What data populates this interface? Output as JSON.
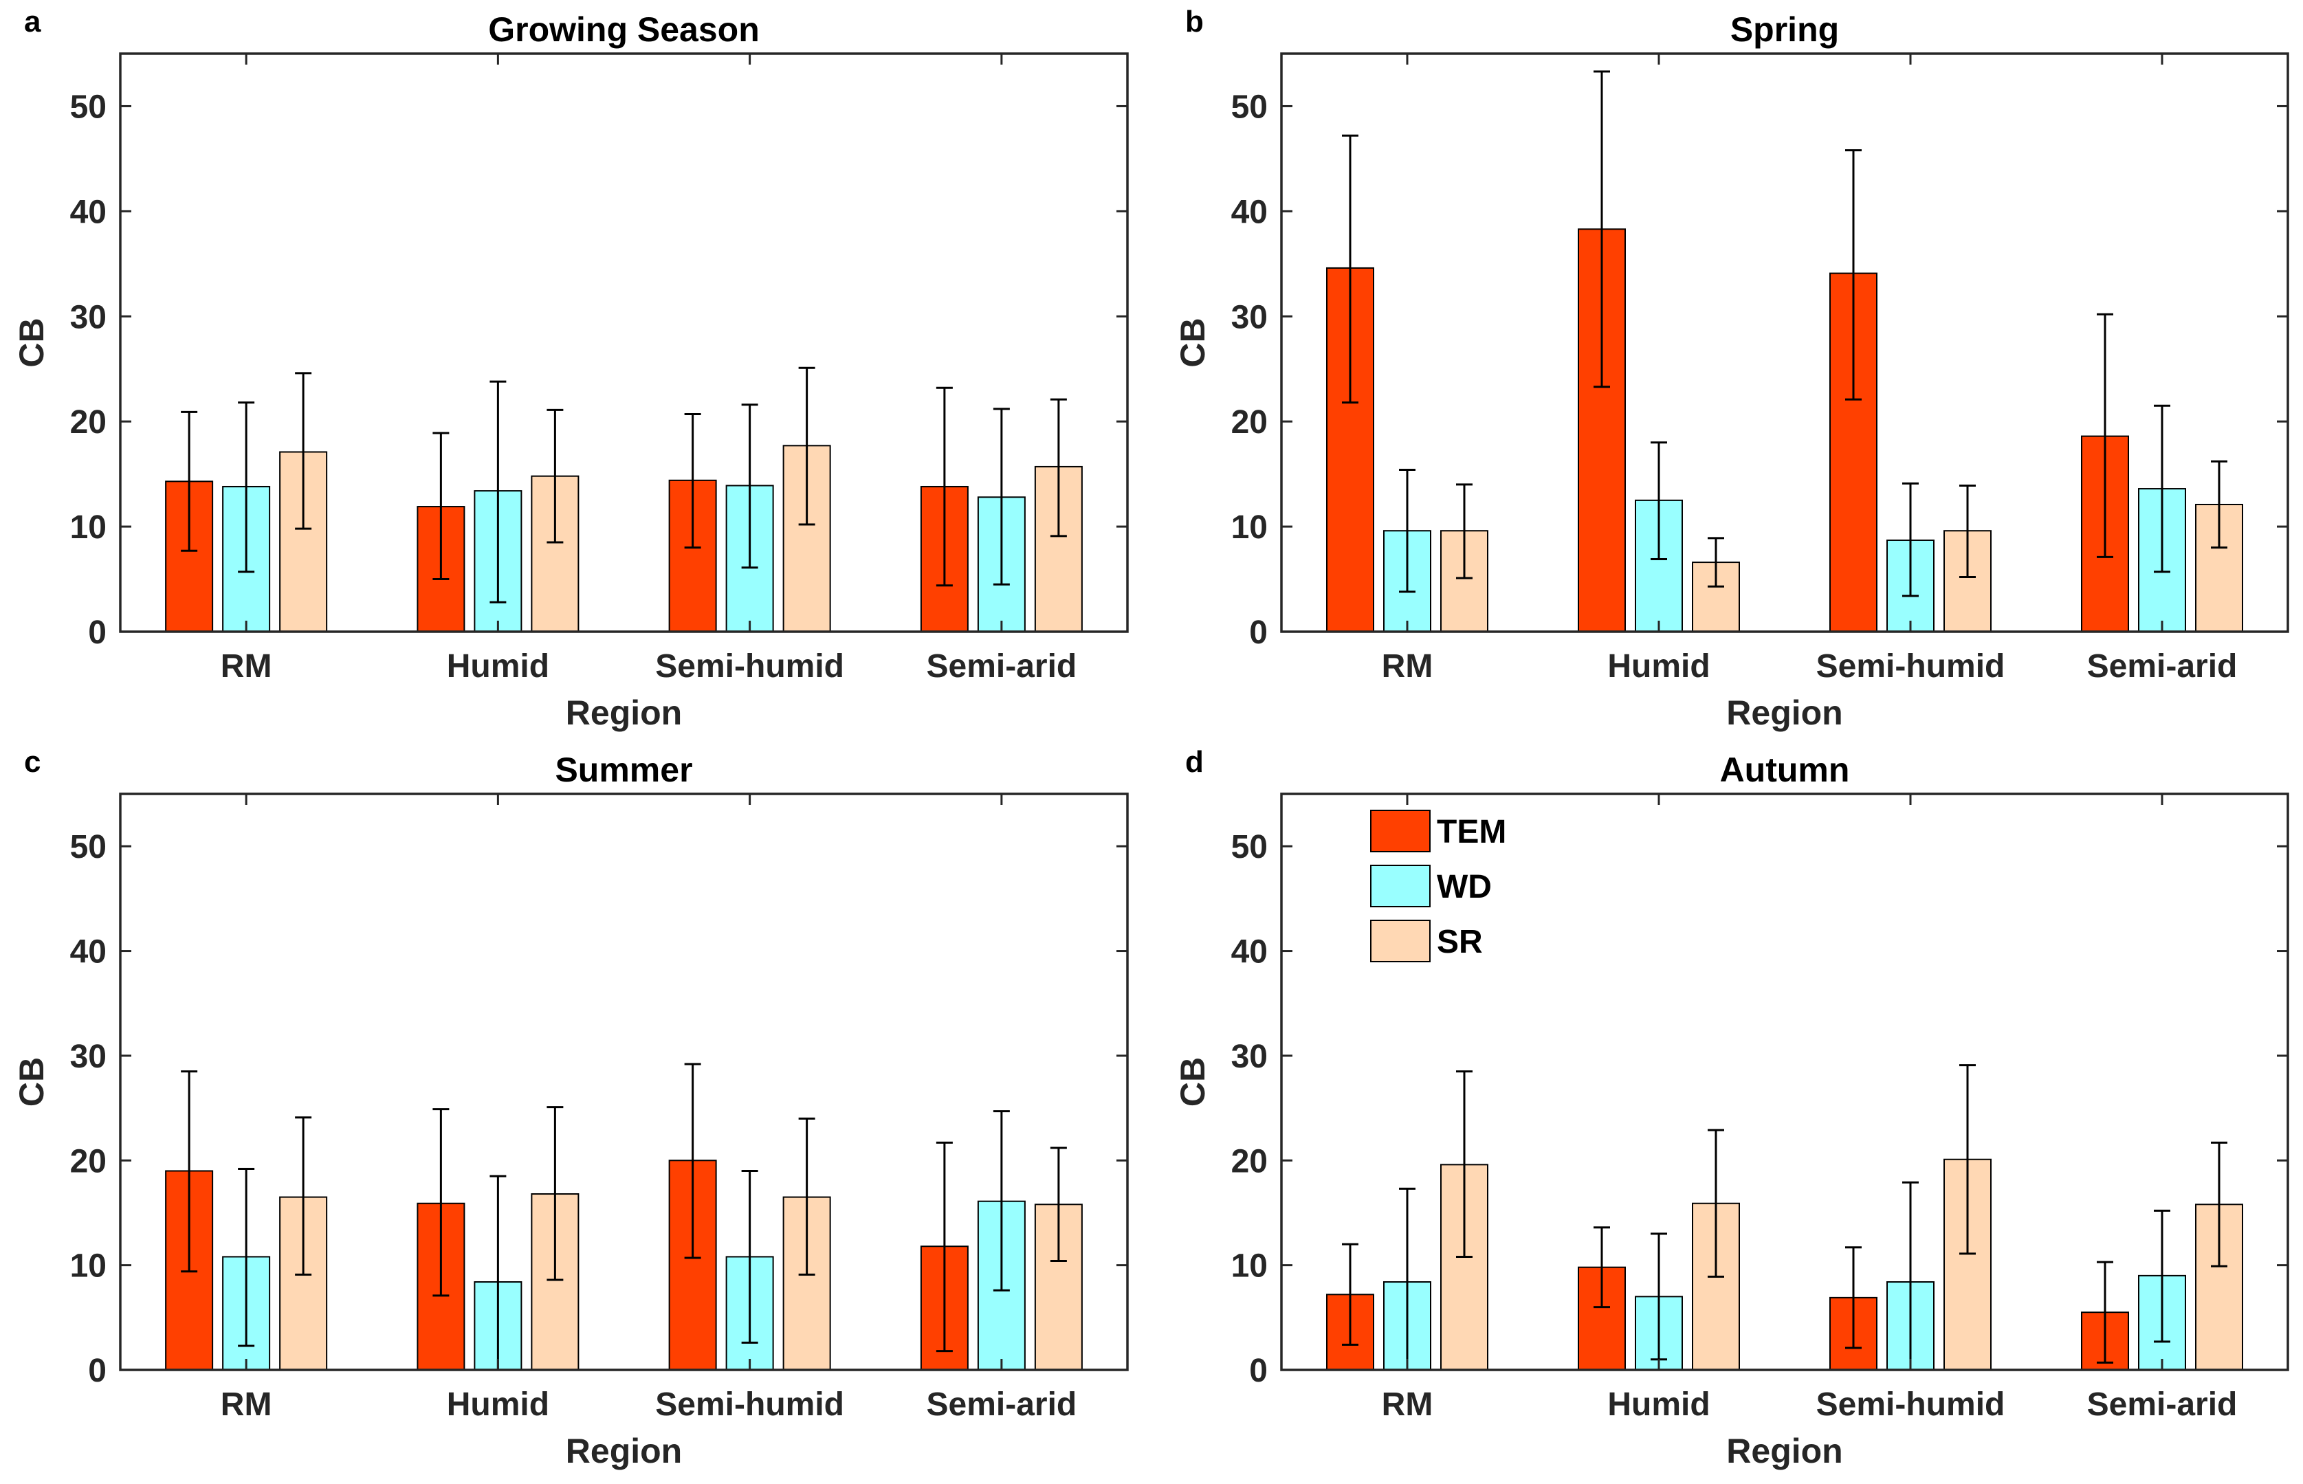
{
  "figure": {
    "series_order": [
      "TEM",
      "WD",
      "SR"
    ]
  },
  "legend": {
    "panel_index": 3,
    "items": [
      {
        "label": "TEM",
        "color": "#FF4000"
      },
      {
        "label": "WD",
        "color": "#99FFFF"
      },
      {
        "label": "SR",
        "color": "#FFD8B4"
      }
    ]
  },
  "chart_data": [
    {
      "type": "bar",
      "panel_letter": "a",
      "title": "Growing Season",
      "xlabel": "Region",
      "ylabel": "CB",
      "ylim": [
        0,
        55
      ],
      "yticks": [
        0,
        10,
        20,
        30,
        40,
        50
      ],
      "categories": [
        "RM",
        "Humid",
        "Semi-humid",
        "Semi-arid"
      ],
      "series": [
        {
          "name": "TEM",
          "color": "#FF4000",
          "values": [
            14.3,
            11.9,
            14.4,
            13.8
          ],
          "err_low": [
            7.7,
            5.0,
            8.0,
            4.4
          ],
          "err_high": [
            20.9,
            18.9,
            20.7,
            23.2
          ]
        },
        {
          "name": "WD",
          "color": "#99FFFF",
          "values": [
            13.8,
            13.4,
            13.9,
            12.8
          ],
          "err_low": [
            5.7,
            2.8,
            6.1,
            4.5
          ],
          "err_high": [
            21.8,
            23.8,
            21.6,
            21.2
          ]
        },
        {
          "name": "SR",
          "color": "#FFD8B4",
          "values": [
            17.1,
            14.8,
            17.7,
            15.7
          ],
          "err_low": [
            9.8,
            8.5,
            10.2,
            9.1
          ],
          "err_high": [
            24.6,
            21.1,
            25.1,
            22.1
          ]
        }
      ]
    },
    {
      "type": "bar",
      "panel_letter": "b",
      "title": "Spring",
      "xlabel": "Region",
      "ylabel": "CB",
      "ylim": [
        0,
        55
      ],
      "yticks": [
        0,
        10,
        20,
        30,
        40,
        50
      ],
      "categories": [
        "RM",
        "Humid",
        "Semi-humid",
        "Semi-arid"
      ],
      "series": [
        {
          "name": "TEM",
          "color": "#FF4000",
          "values": [
            34.6,
            38.3,
            34.1,
            18.6
          ],
          "err_low": [
            21.8,
            23.3,
            22.1,
            7.1
          ],
          "err_high": [
            47.2,
            53.3,
            45.8,
            30.2
          ]
        },
        {
          "name": "WD",
          "color": "#99FFFF",
          "values": [
            9.6,
            12.5,
            8.7,
            13.6
          ],
          "err_low": [
            3.8,
            6.9,
            3.4,
            5.7
          ],
          "err_high": [
            15.4,
            18.0,
            14.1,
            21.5
          ]
        },
        {
          "name": "SR",
          "color": "#FFD8B4",
          "values": [
            9.6,
            6.6,
            9.6,
            12.1
          ],
          "err_low": [
            5.1,
            4.3,
            5.2,
            8.0
          ],
          "err_high": [
            14.0,
            8.9,
            13.9,
            16.2
          ]
        }
      ]
    },
    {
      "type": "bar",
      "panel_letter": "c",
      "title": "Summer",
      "xlabel": "Region",
      "ylabel": "CB",
      "ylim": [
        0,
        55
      ],
      "yticks": [
        0,
        10,
        20,
        30,
        40,
        50
      ],
      "categories": [
        "RM",
        "Humid",
        "Semi-humid",
        "Semi-arid"
      ],
      "series": [
        {
          "name": "TEM",
          "color": "#FF4000",
          "values": [
            19.0,
            15.9,
            20.0,
            11.8
          ],
          "err_low": [
            9.4,
            7.1,
            10.7,
            1.8
          ],
          "err_high": [
            28.5,
            24.9,
            29.2,
            21.7
          ]
        },
        {
          "name": "WD",
          "color": "#99FFFF",
          "values": [
            10.8,
            8.4,
            10.8,
            16.1
          ],
          "err_low": [
            2.3,
            0.0,
            2.6,
            7.6
          ],
          "err_high": [
            19.2,
            18.5,
            19.0,
            24.7
          ]
        },
        {
          "name": "SR",
          "color": "#FFD8B4",
          "values": [
            16.5,
            16.8,
            16.5,
            15.8
          ],
          "err_low": [
            9.1,
            8.6,
            9.1,
            10.4
          ],
          "err_high": [
            24.1,
            25.1,
            24.0,
            21.2
          ]
        }
      ]
    },
    {
      "type": "bar",
      "panel_letter": "d",
      "title": "Autumn",
      "xlabel": "Region",
      "ylabel": "CB",
      "ylim": [
        0,
        55
      ],
      "yticks": [
        0,
        10,
        20,
        30,
        40,
        50
      ],
      "categories": [
        "RM",
        "Humid",
        "Semi-humid",
        "Semi-arid"
      ],
      "series": [
        {
          "name": "TEM",
          "color": "#FF4000",
          "values": [
            7.2,
            9.8,
            6.9,
            5.5
          ],
          "err_low": [
            2.4,
            6.0,
            2.1,
            0.7
          ],
          "err_high": [
            12.0,
            13.6,
            11.7,
            10.3
          ]
        },
        {
          "name": "WD",
          "color": "#99FFFF",
          "values": [
            8.4,
            7.0,
            8.4,
            9.0
          ],
          "err_low": [
            0.0,
            1.0,
            0.0,
            2.7
          ],
          "err_high": [
            17.3,
            13.0,
            17.9,
            15.2
          ]
        },
        {
          "name": "SR",
          "color": "#FFD8B4",
          "values": [
            19.6,
            15.9,
            20.1,
            15.8
          ],
          "err_low": [
            10.8,
            8.9,
            11.1,
            9.9
          ],
          "err_high": [
            28.5,
            22.9,
            29.1,
            21.7
          ]
        }
      ]
    }
  ]
}
